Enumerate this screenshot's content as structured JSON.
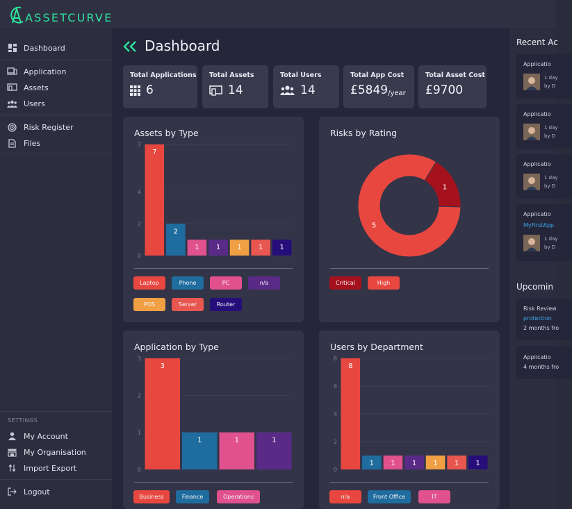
{
  "app": {
    "logo_text": "ASSETCURVE",
    "brand_color": "#2ee59d"
  },
  "sidebar": {
    "items": [
      {
        "label": "Dashboard",
        "icon": "dashboard-grid-icon"
      },
      {
        "label": "Application",
        "icon": "laptop-phone-icon"
      },
      {
        "label": "Assets",
        "icon": "devices-icon"
      },
      {
        "label": "Users",
        "icon": "users-icon"
      },
      {
        "label": "Risk Register",
        "icon": "risk-target-icon"
      },
      {
        "label": "Files",
        "icon": "file-icon"
      }
    ],
    "settings_label": "SETTINGS",
    "settings_items": [
      {
        "label": "My Account",
        "icon": "person-icon"
      },
      {
        "label": "My Organisation",
        "icon": "organisation-icon"
      },
      {
        "label": "Import Export",
        "icon": "import-export-icon"
      }
    ],
    "logout_label": "Logout"
  },
  "page": {
    "title": "Dashboard"
  },
  "stats": [
    {
      "label": "Total Applications",
      "value": "6",
      "suffix": "",
      "icon": "apps-grid-icon"
    },
    {
      "label": "Total Assets",
      "value": "14",
      "suffix": "",
      "icon": "devices-icon"
    },
    {
      "label": "Total Users",
      "value": "14",
      "suffix": "",
      "icon": "users-icon"
    },
    {
      "label": "Total App Cost",
      "value": "£5849",
      "suffix": "/year",
      "icon": ""
    },
    {
      "label": "Total Asset Cost",
      "value": "£9700",
      "suffix": "",
      "icon": ""
    }
  ],
  "charts": {
    "assets_title": "Assets by Type",
    "risks_title": "Risks by Rating",
    "apps_title": "Application by Type",
    "users_title": "Users by Department"
  },
  "chart_data": [
    {
      "type": "bar",
      "title": "Assets by Type",
      "categories": [
        "Laptop",
        "Phone",
        "PC",
        "n/a",
        "POS",
        "Server",
        "Router"
      ],
      "values": [
        7,
        2,
        1,
        1,
        1,
        1,
        1
      ],
      "colors": [
        "#e8473f",
        "#1f6c9e",
        "#e0518e",
        "#5a2a87",
        "#f0a043",
        "#e8574f",
        "#250e7a"
      ],
      "y_ticks": [
        0,
        2,
        4,
        7
      ],
      "ylim": [
        0,
        7
      ]
    },
    {
      "type": "pie",
      "title": "Risks by Rating",
      "categories": [
        "Critical",
        "High"
      ],
      "values": [
        1,
        5
      ],
      "colors": [
        "#a5121e",
        "#e8473f"
      ]
    },
    {
      "type": "bar",
      "title": "Application by Type",
      "categories": [
        "Business",
        "Finance",
        "Operations",
        ""
      ],
      "values": [
        3,
        1,
        1,
        1
      ],
      "colors": [
        "#e8473f",
        "#1f6c9e",
        "#e0518e",
        "#5a2a87"
      ],
      "y_ticks": [
        0,
        1,
        2,
        3
      ],
      "ylim": [
        0,
        3
      ]
    },
    {
      "type": "bar",
      "title": "Users by Department",
      "categories": [
        "n/a",
        "Front Office",
        "IT",
        "",
        "",
        "",
        ""
      ],
      "values": [
        8,
        1,
        1,
        1,
        1,
        1,
        1
      ],
      "colors": [
        "#e8473f",
        "#1f6c9e",
        "#e0518e",
        "#5a2a87",
        "#f0a043",
        "#e8574f",
        "#250e7a"
      ],
      "y_ticks": [
        0,
        2,
        4,
        6,
        8
      ],
      "ylim": [
        0,
        8
      ]
    }
  ],
  "right_panel": {
    "recent_title": "Recent Ac",
    "activities": [
      {
        "line1": "Applicatio",
        "line2": "1 day",
        "line3": "by D",
        "link": ""
      },
      {
        "line1": "Applicatio",
        "line2": "1 day",
        "line3": "by D",
        "link": ""
      },
      {
        "line1": "Applicatio",
        "line2": "1 day",
        "line3": "by D",
        "link": ""
      },
      {
        "line1": "Applicatio",
        "line2": "1 day",
        "line3": "by D",
        "link": "MyFirstApp"
      }
    ],
    "upcoming_title": "Upcomin",
    "upcoming": [
      {
        "line1": "Risk Review",
        "link": "protection",
        "line3": "2 months fro"
      },
      {
        "line1": "Applicatio",
        "link": "",
        "line3": "4 months fro"
      }
    ]
  }
}
